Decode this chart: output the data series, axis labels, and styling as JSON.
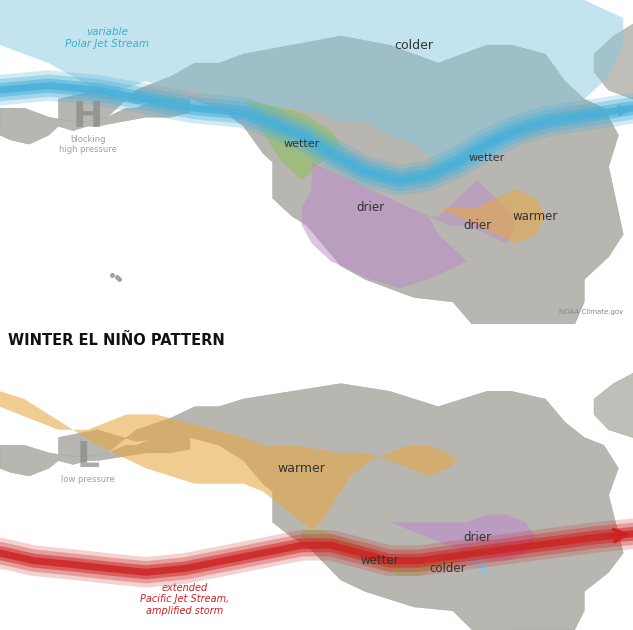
{
  "fig_width": 6.33,
  "fig_height": 6.3,
  "dpi": 100,
  "panel1": {
    "jet_label": "variable\nPolar Jet Stream",
    "jet_label_color": "#3ab0cc",
    "H_label": "H",
    "H_sub": "blocking\nhigh pressure",
    "H_color": "#888888",
    "colder_label": "colder",
    "wetter1_label": "wetter",
    "wetter2_label": "wetter",
    "drier1_label": "drier",
    "drier2_label": "drier",
    "warmer_label": "warmer",
    "noaa_credit": "NOAA Climate.gov",
    "label_color": "#333333",
    "jet_color": "#4ab0d8",
    "blue_region_color": "#88c8e0",
    "green_region_color": "#90c060",
    "purple_region_color": "#bb88cc",
    "orange_region_color": "#e8a840"
  },
  "panel2": {
    "title": "WINTER EL NIÑO PATTERN",
    "title_color": "#111111",
    "warmer_label": "warmer",
    "wetter_label": "wetter",
    "colder_label": "colder",
    "drier_label": "drier",
    "L_label": "L",
    "L_sub": "low pressure",
    "L_color": "#888888",
    "jet_label": "extended\nPacific Jet Stream,\namplified storm",
    "jet_color": "#cc2222",
    "jet_label_color": "#cc2222",
    "label_color": "#333333",
    "orange_region_color": "#e8a840",
    "purple_region_color": "#bb88cc",
    "green_region_color": "#90c060",
    "blue_region_color": "#88c8e0"
  }
}
